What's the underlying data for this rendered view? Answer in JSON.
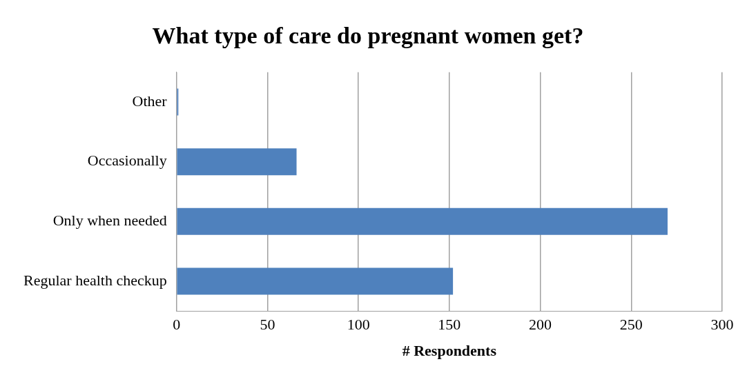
{
  "chart_data": {
    "type": "bar",
    "orientation": "horizontal",
    "title": "What type of care do pregnant women get?",
    "xlabel": "# Respondents",
    "categories": [
      "Other",
      "Occasionally",
      "Only when needed",
      "Regular health checkup"
    ],
    "values": [
      1,
      66,
      270,
      152
    ],
    "color": "#4f81bd",
    "xlim": [
      0,
      300
    ],
    "xticks": [
      0,
      50,
      100,
      150,
      200,
      250,
      300
    ],
    "grid": "x",
    "legend": false
  }
}
